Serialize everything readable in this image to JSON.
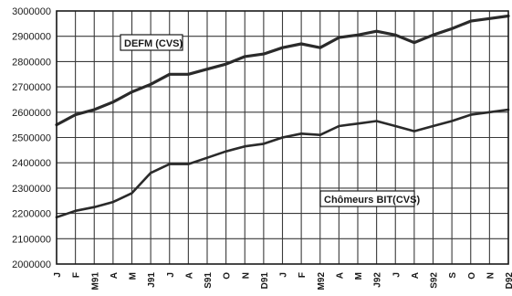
{
  "chart_data": {
    "type": "line",
    "title": "",
    "xlabel": "",
    "ylabel": "",
    "categories": [
      "J",
      "F",
      "M91",
      "A",
      "M",
      "J91",
      "J",
      "A",
      "S91",
      "O",
      "N",
      "D91",
      "J",
      "F",
      "M92",
      "A",
      "M",
      "J92",
      "J",
      "A",
      "S92",
      "S",
      "O",
      "N",
      "D92"
    ],
    "ylim": [
      2000000,
      3000000
    ],
    "yticks": [
      "3000000",
      "2900000",
      "2800000",
      "2700000",
      "2600000",
      "2500000",
      "2400000",
      "2300000",
      "2200000",
      "2100000",
      "2000000"
    ],
    "grid": true,
    "series": [
      {
        "name": "DEFM (CVS)",
        "values": [
          2550000,
          2590000,
          2610000,
          2640000,
          2680000,
          2710000,
          2750000,
          2750000,
          2770000,
          2790000,
          2820000,
          2830000,
          2855000,
          2870000,
          2855000,
          2895000,
          2905000,
          2920000,
          2905000,
          2875000,
          2905000,
          2930000,
          2960000,
          2970000,
          2980000
        ]
      },
      {
        "name": "Chômeurs BIT(CVS)",
        "values": [
          2185000,
          2210000,
          2225000,
          2245000,
          2280000,
          2360000,
          2395000,
          2395000,
          2420000,
          2445000,
          2465000,
          2475000,
          2500000,
          2515000,
          2510000,
          2545000,
          2555000,
          2565000,
          2545000,
          2525000,
          2545000,
          2565000,
          2590000,
          2600000,
          2610000
        ]
      }
    ]
  }
}
